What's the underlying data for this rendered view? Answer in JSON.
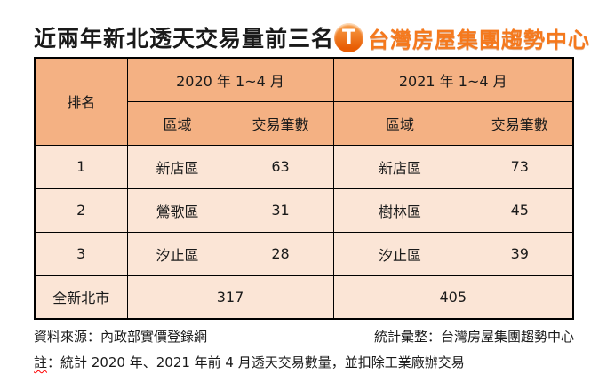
{
  "header": {
    "title": "近兩年新北透天交易量前三名",
    "brand": {
      "icon_letter": "T",
      "name": "台灣房屋集團趨勢中心"
    }
  },
  "table": {
    "rank_header": "排名",
    "groups": [
      {
        "period": "2020 年 1~4 月",
        "area_header": "區域",
        "count_header": "交易筆數"
      },
      {
        "period": "2021 年 1~4 月",
        "area_header": "區域",
        "count_header": "交易筆數"
      }
    ],
    "rows": [
      {
        "rank": "1",
        "area_2020": "新店區",
        "count_2020": "63",
        "area_2021": "新店區",
        "count_2021": "73"
      },
      {
        "rank": "2",
        "area_2020": "鶯歌區",
        "count_2020": "31",
        "area_2021": "樹林區",
        "count_2021": "45"
      },
      {
        "rank": "3",
        "area_2020": "汐止區",
        "count_2020": "28",
        "area_2021": "汐止區",
        "count_2021": "39"
      }
    ],
    "total": {
      "label": "全新北市",
      "count_2020": "317",
      "count_2021": "405"
    }
  },
  "footer": {
    "source": "資料來源：內政部實價登錄網",
    "compiled": "統計彙整：台灣房屋集團趨勢中心",
    "note_marked": "註",
    "note_rest": "：統計 2020 年、2021 年前 4 月透天交易數量，並扣除工業廠辦交易"
  },
  "colors": {
    "header_bg": "#F4B183",
    "row_bg": "#FBE5D6",
    "border_color": "#000000",
    "logo_orange": "#F5791D",
    "squiggle_red": "#FF0000"
  }
}
